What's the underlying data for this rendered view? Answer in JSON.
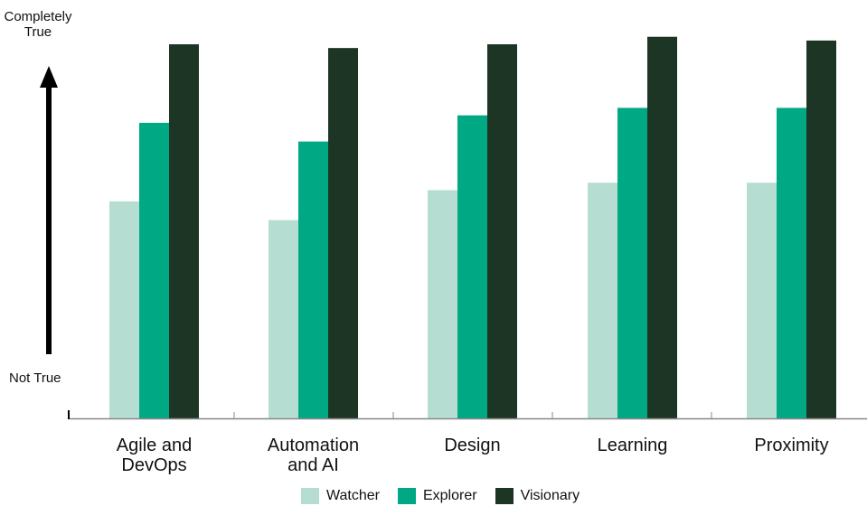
{
  "chart_data": {
    "type": "bar",
    "title": "",
    "xlabel": "",
    "ylabel_top": "Completely\nTrue",
    "ylabel_bottom": "Not True",
    "categories": [
      "Agile and\nDevOps",
      "Automation\nand AI",
      "Design",
      "Learning",
      "Proximity"
    ],
    "series": [
      {
        "name": "Watcher",
        "color": "#b6ddd2",
        "values": [
          58,
          53,
          61,
          63,
          63
        ]
      },
      {
        "name": "Explorer",
        "color": "#00a884",
        "values": [
          79,
          74,
          81,
          83,
          83
        ]
      },
      {
        "name": "Visionary",
        "color": "#1d3524",
        "values": [
          100,
          99,
          100,
          102,
          101
        ]
      }
    ],
    "ylim": [
      0,
      105
    ],
    "y_tick_labels": false,
    "grid": false,
    "legend_position": "bottom",
    "axis_color": "#888888",
    "arrow_color": "#000000"
  }
}
